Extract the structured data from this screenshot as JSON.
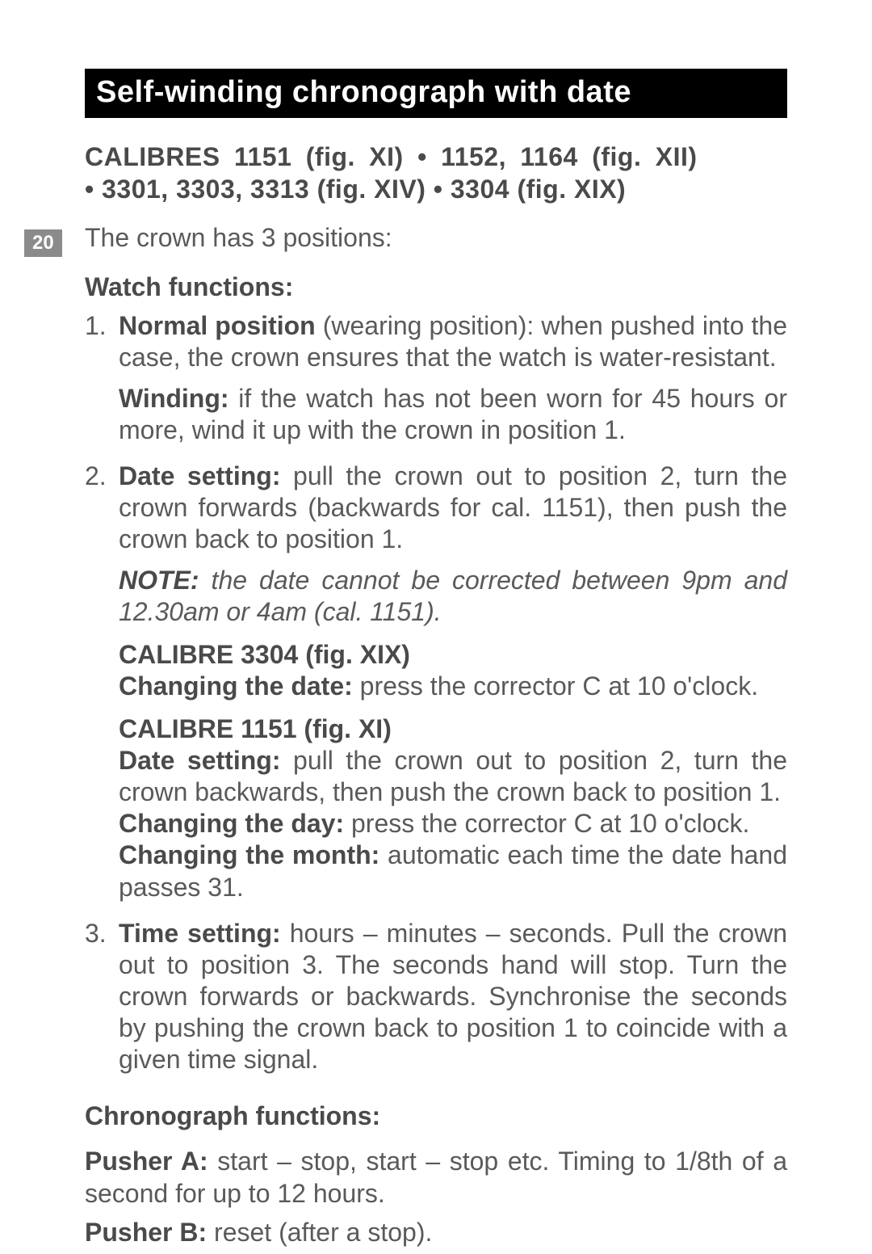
{
  "page_number": "20",
  "title": "Self-winding chronograph with date",
  "calibres_line1": "CALIBRES 1151 (fig. XI) • 1152, 1164 (fig. XII)",
  "calibres_line2": "• 3301, 3303, 3313 (fig. XIV) • 3304 (fig. XIX)",
  "intro": "The crown has 3 positions:",
  "watch_functions_head": "Watch functions:",
  "item1": {
    "b1": "Normal position",
    "t1": " (wearing position): when pushed into the case, the crown ensures that the watch is water-resistant.",
    "b2": "Winding:",
    "t2": " if the watch has not been worn for 45 hours or more, wind it up with the crown in position 1."
  },
  "item2": {
    "b1": "Date setting:",
    "t1": " pull the crown out to position 2, turn the crown forwards (backwards for cal. 1151), then push the crown back to position 1.",
    "note_b": "NOTE:",
    "note_t": " the date cannot be corrected between 9pm and 12.30am or 4am (cal. 1151).",
    "cal3304_head": "CALIBRE 3304 (fig. XIX)",
    "cal3304_b": "Changing the date:",
    "cal3304_t": " press the corrector C at 10 o'clock.",
    "cal1151_head": "CALIBRE 1151 (fig. XI)",
    "c1151_b1": "Date setting:",
    "c1151_t1": " pull the crown out to position 2, turn the crown backwards, then push the crown back to position 1.",
    "c1151_b2": "Changing the day:",
    "c1151_t2": " press the corrector C at 10 o'clock.",
    "c1151_b3": "Changing the month:",
    "c1151_t3": " automatic each time the date hand passes 31."
  },
  "item3": {
    "b1": "Time setting:",
    "t1": " hours – minutes – seconds. Pull the crown out to position 3. The seconds hand will stop. Turn the crown forwards or backwards. Synchronise the seconds by pushing the crown back to position 1 to coincide with a given time signal."
  },
  "chrono_head": "Chronograph functions:",
  "pusher_a_b": "Pusher A:",
  "pusher_a_t": " start – stop, start – stop etc. Timing to 1/8th of a second for up to 12 hours.",
  "pusher_b_b": "Pusher B:",
  "pusher_b_t": " reset (after a stop)."
}
